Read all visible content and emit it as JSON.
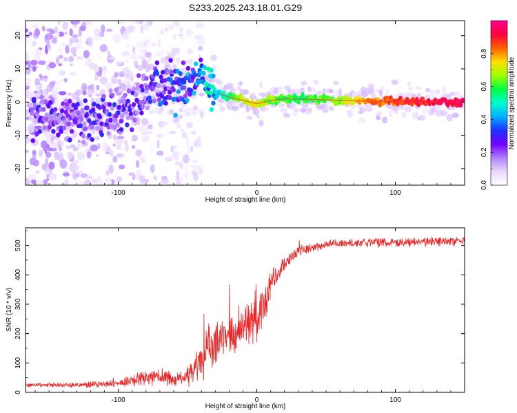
{
  "page": {
    "title": "S233.2025.243.18.01.G29"
  },
  "colors": {
    "frame": "#000000",
    "snr_line": "#ee2222",
    "bg": "#ffffff"
  },
  "chart_data": [
    {
      "type": "heatmap",
      "title": "S233.2025.243.18.01.G29",
      "xlabel": "Height of straight line (km)",
      "ylabel": "Frequency (Hz)",
      "xlim": [
        -167,
        150
      ],
      "ylim": [
        -25,
        24.5
      ],
      "x_ticks": [
        -100,
        0,
        100
      ],
      "y_ticks": [
        20,
        10,
        0,
        -10,
        -20
      ],
      "colorbar": {
        "label": "Normalized spectral amplitude",
        "range": [
          0,
          1
        ],
        "ticks": [
          "0.0",
          "0.2",
          "0.4",
          "0.6",
          "0.8"
        ],
        "tick_values": [
          0,
          0.2,
          0.4,
          0.6,
          0.8
        ],
        "colormap": [
          "#ffffff",
          "#e8d8ff",
          "#b080ff",
          "#7000ff",
          "#2030ff",
          "#00b0ff",
          "#00ffd0",
          "#00ff40",
          "#a0ff00",
          "#ffe000",
          "#ff6000",
          "#ff0040",
          "#ff0090"
        ]
      },
      "ridge": {
        "x": [
          -160,
          -150,
          -140,
          -130,
          -120,
          -110,
          -100,
          -90,
          -80,
          -70,
          -60,
          -50,
          -40,
          -35,
          -30,
          -20,
          -10,
          0,
          10,
          20,
          40,
          60,
          80,
          100,
          120,
          148
        ],
        "freq": [
          -4,
          -5,
          -6,
          -5,
          -5,
          -4.5,
          -2,
          -1,
          3,
          4,
          5.5,
          5.5,
          7,
          5,
          3,
          1.5,
          0.5,
          -0.5,
          0.5,
          1,
          0.8,
          0.5,
          0.3,
          0.2,
          0.1,
          0
        ],
        "amplitude": [
          0.22,
          0.22,
          0.22,
          0.2,
          0.25,
          0.22,
          0.22,
          0.2,
          0.22,
          0.25,
          0.3,
          0.32,
          0.35,
          0.45,
          0.45,
          0.55,
          0.7,
          0.72,
          0.65,
          0.6,
          0.6,
          0.65,
          0.8,
          0.85,
          0.9,
          0.95
        ]
      },
      "noise": {
        "region_x": [
          -167,
          -40
        ],
        "region_freq": [
          -25,
          24.5
        ],
        "amplitude_range": [
          0.02,
          0.22
        ]
      }
    },
    {
      "type": "line",
      "xlabel": "Height of straight line (km)",
      "ylabel": "SNR (10 * v/v)",
      "xlim": [
        -167,
        150
      ],
      "ylim": [
        0,
        560
      ],
      "x_ticks": [
        -100,
        0,
        100
      ],
      "y_ticks": [
        0,
        100,
        200,
        300,
        400,
        500
      ],
      "series": [
        {
          "name": "SNR",
          "color": "#ee2222",
          "trend_x": [
            -167,
            -130,
            -100,
            -80,
            -70,
            -60,
            -50,
            -40,
            -35,
            -30,
            -20,
            -10,
            0,
            5,
            10,
            15,
            20,
            30,
            50,
            80,
            100,
            130,
            150
          ],
          "trend_y": [
            25,
            25,
            30,
            50,
            60,
            40,
            55,
            100,
            150,
            170,
            190,
            225,
            250,
            300,
            360,
            410,
            440,
            480,
            505,
            510,
            510,
            515,
            515
          ],
          "noise_amplitude": [
            8,
            10,
            15,
            30,
            40,
            25,
            40,
            80,
            100,
            90,
            80,
            90,
            100,
            90,
            60,
            40,
            30,
            22,
            18,
            18,
            18,
            18,
            18
          ]
        }
      ]
    }
  ]
}
